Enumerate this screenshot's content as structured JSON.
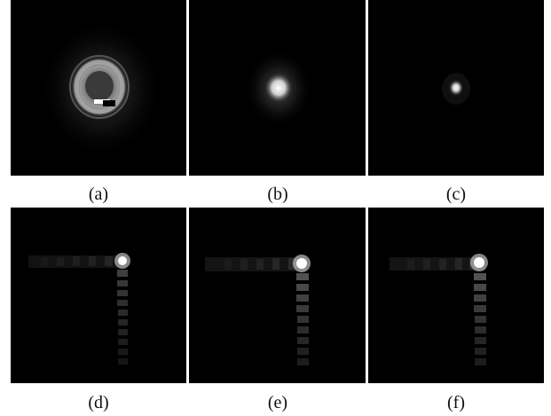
{
  "panels": [
    {
      "id": "a",
      "caption": "(a)",
      "description": "ring-shaped speckle"
    },
    {
      "id": "b",
      "caption": "(b)",
      "description": "focused spot with halo"
    },
    {
      "id": "c",
      "caption": "(c)",
      "description": "small focused spot"
    },
    {
      "id": "d",
      "caption": "(d)",
      "description": "spot with horizontal and vertical sidelobes"
    },
    {
      "id": "e",
      "caption": "(e)",
      "description": "spot with horizontal and vertical sidelobes"
    },
    {
      "id": "f",
      "caption": "(f)",
      "description": "spot with horizontal and vertical sidelobes"
    }
  ],
  "colors": {
    "background": "#000000",
    "page": "#ffffff",
    "text": "#111111"
  }
}
